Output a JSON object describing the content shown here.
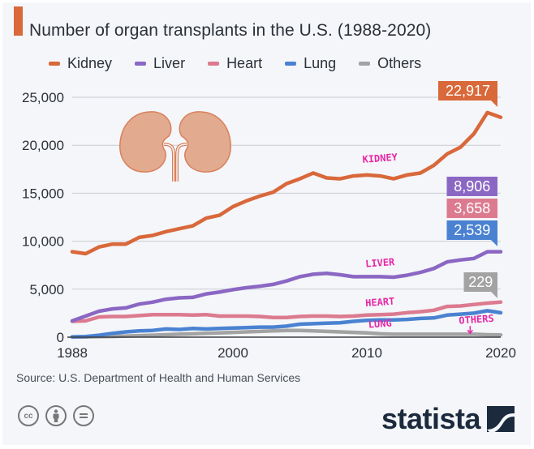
{
  "header": {
    "title": "Number of organ transplants in the U.S. (1988-2020)",
    "accent_color": "#d9683a"
  },
  "legend": [
    {
      "label": "Kidney",
      "color": "#d9683a"
    },
    {
      "label": "Liver",
      "color": "#8b67c4"
    },
    {
      "label": "Heart",
      "color": "#dc7a8f"
    },
    {
      "label": "Lung",
      "color": "#4a82d1"
    },
    {
      "label": "Others",
      "color": "#a3a3a3"
    }
  ],
  "footer": {
    "source": "Source: U.S. Department of Health and Human Services",
    "license_icons": [
      "cc-icon",
      "attribution-icon",
      "no-derivatives-icon"
    ],
    "license_glyphs": [
      "cc",
      "i",
      "="
    ],
    "brand": "statista"
  },
  "chart_data": {
    "type": "line",
    "title": "Number of organ transplants in the U.S. (1988-2020)",
    "xlabel": "",
    "ylabel": "",
    "x": [
      1988,
      1989,
      1990,
      1991,
      1992,
      1993,
      1994,
      1995,
      1996,
      1997,
      1998,
      1999,
      2000,
      2001,
      2002,
      2003,
      2004,
      2005,
      2006,
      2007,
      2008,
      2009,
      2010,
      2011,
      2012,
      2013,
      2014,
      2015,
      2016,
      2017,
      2018,
      2019,
      2020
    ],
    "xlim": [
      1988,
      2020
    ],
    "ylim": [
      0,
      25000
    ],
    "x_ticks": [
      1988,
      2000,
      2010,
      2020
    ],
    "x_tick_labels": [
      "1988",
      "2000",
      "2010",
      "2020"
    ],
    "y_ticks": [
      0,
      5000,
      10000,
      15000,
      20000,
      25000
    ],
    "y_tick_labels": [
      "0",
      "5,000",
      "10,000",
      "15,000",
      "20,000",
      "25,000"
    ],
    "grid": true,
    "legend_position": "top",
    "series": [
      {
        "name": "Kidney",
        "color": "#d9683a",
        "values": [
          8900,
          8700,
          9400,
          9700,
          9700,
          10400,
          10600,
          11000,
          11300,
          11600,
          12400,
          12700,
          13600,
          14200,
          14700,
          15100,
          16000,
          16500,
          17100,
          16600,
          16500,
          16800,
          16900,
          16800,
          16500,
          16900,
          17100,
          17900,
          19100,
          19800,
          21200,
          23400,
          22917
        ],
        "end_label": "22,917",
        "annotation": "KIDNEY",
        "annotation_x": 2011,
        "annotation_y": 18300
      },
      {
        "name": "Liver",
        "color": "#8b67c4",
        "values": [
          1700,
          2200,
          2700,
          2950,
          3050,
          3450,
          3650,
          3950,
          4100,
          4150,
          4500,
          4700,
          4950,
          5150,
          5300,
          5500,
          5850,
          6300,
          6550,
          6650,
          6500,
          6300,
          6300,
          6300,
          6250,
          6450,
          6750,
          7150,
          7850,
          8050,
          8200,
          8900,
          8906
        ],
        "end_label": "8,906",
        "annotation": "LIVER",
        "annotation_x": 2011,
        "annotation_y": 7400
      },
      {
        "name": "Heart",
        "color": "#dc7a8f",
        "values": [
          1650,
          1700,
          2100,
          2150,
          2150,
          2250,
          2350,
          2350,
          2350,
          2300,
          2350,
          2200,
          2200,
          2200,
          2150,
          2050,
          2050,
          2150,
          2200,
          2200,
          2150,
          2200,
          2300,
          2350,
          2400,
          2550,
          2650,
          2800,
          3200,
          3250,
          3400,
          3550,
          3658
        ],
        "end_label": "3,658",
        "annotation": "HEART",
        "annotation_x": 2011,
        "annotation_y": 3300
      },
      {
        "name": "Lung",
        "color": "#4a82d1",
        "values": [
          30,
          60,
          200,
          400,
          550,
          650,
          700,
          850,
          800,
          900,
          850,
          900,
          950,
          1000,
          1050,
          1050,
          1150,
          1350,
          1400,
          1450,
          1500,
          1650,
          1750,
          1800,
          1800,
          1850,
          1950,
          2000,
          2300,
          2400,
          2500,
          2750,
          2539
        ],
        "end_label": "2,539",
        "annotation": "LUNG",
        "annotation_x": 2011,
        "annotation_y": 1050
      },
      {
        "name": "Others",
        "color": "#a3a3a3",
        "values": [
          10,
          20,
          50,
          80,
          120,
          160,
          200,
          250,
          300,
          350,
          400,
          450,
          500,
          550,
          600,
          650,
          700,
          700,
          650,
          600,
          550,
          500,
          450,
          350,
          300,
          300,
          300,
          300,
          300,
          300,
          300,
          250,
          229
        ],
        "end_label": "229",
        "annotation": "OTHERS",
        "annotation_x": 2018.2,
        "annotation_y": 1500
      }
    ]
  }
}
